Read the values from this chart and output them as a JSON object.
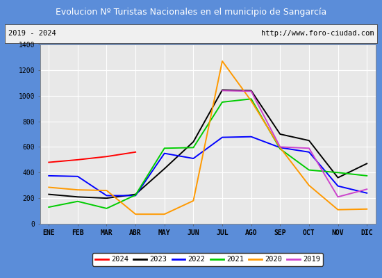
{
  "title": "Evolucion Nº Turistas Nacionales en el municipio de Sangarcía",
  "subtitle_left": "2019 - 2024",
  "subtitle_right": "http://www.foro-ciudad.com",
  "months": [
    "ENE",
    "FEB",
    "MAR",
    "ABR",
    "MAY",
    "JUN",
    "JUL",
    "AGO",
    "SEP",
    "OCT",
    "NOV",
    "DIC"
  ],
  "ylim": [
    0,
    1400
  ],
  "yticks": [
    0,
    200,
    400,
    600,
    800,
    1000,
    1200,
    1400
  ],
  "series": {
    "2024": {
      "color": "#ff0000",
      "data": [
        480,
        500,
        525,
        560,
        null,
        null,
        null,
        null,
        null,
        null,
        null,
        null
      ]
    },
    "2023": {
      "color": "#000000",
      "data": [
        230,
        210,
        200,
        230,
        430,
        640,
        1045,
        1040,
        700,
        650,
        360,
        470
      ]
    },
    "2022": {
      "color": "#0000ff",
      "data": [
        375,
        370,
        220,
        220,
        550,
        510,
        675,
        680,
        595,
        560,
        295,
        240
      ]
    },
    "2021": {
      "color": "#00cc00",
      "data": [
        130,
        175,
        120,
        225,
        590,
        595,
        950,
        975,
        585,
        420,
        400,
        375
      ]
    },
    "2020": {
      "color": "#ff9900",
      "data": [
        285,
        265,
        260,
        75,
        75,
        180,
        1270,
        960,
        595,
        300,
        110,
        115
      ]
    },
    "2019": {
      "color": "#cc44cc",
      "data": [
        null,
        null,
        null,
        null,
        null,
        null,
        1040,
        1035,
        600,
        590,
        210,
        270
      ]
    }
  },
  "legend_order": [
    "2024",
    "2023",
    "2022",
    "2021",
    "2020",
    "2019"
  ],
  "title_bg_color": "#5b8dd9",
  "title_text_color": "#ffffff",
  "plot_bg_color": "#e8e8e8",
  "border_color": "#5b8dd9",
  "grid_color": "#ffffff",
  "subtitle_box_color": "#f0f0f0",
  "subtitle_border_color": "#555555"
}
